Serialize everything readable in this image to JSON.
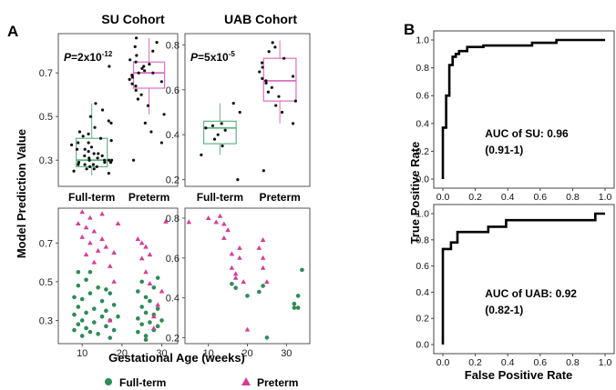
{
  "figure": {
    "panel_a_label": "A",
    "panel_b_label": "B",
    "su_title": "SU Cohort",
    "uab_title": "UAB Cohort",
    "y_axis_title_a": "Model Prediction Value",
    "x_axis_title_a": "Gestational Age (weeks)",
    "y_axis_title_b": "True Positive Rate",
    "x_axis_title_b": "False Positive Rate",
    "legend_fullterm": "Full-term",
    "legend_preterm": "Preterm"
  },
  "colors": {
    "fullterm": "#2e8b57",
    "preterm": "#d63c9a",
    "fullterm_box": "#5fb583",
    "preterm_box": "#df6dc0"
  },
  "chart_data": [
    {
      "id": "su-box",
      "type": "box",
      "title": "SU Cohort",
      "categories": [
        "Full-term",
        "Preterm"
      ],
      "ylim": [
        0.18,
        0.88
      ],
      "yticks": [
        0.3,
        0.5,
        0.7
      ],
      "ytick_labels": [
        "0.3",
        "0.5",
        "0.7"
      ],
      "annotation": {
        "prefix": "P",
        "text": "=2x10",
        "exp": "-12"
      },
      "boxes": [
        {
          "category": "Full-term",
          "q1": 0.27,
          "median": 0.3,
          "q3": 0.4,
          "whisker_low": 0.23,
          "whisker_high": 0.56
        },
        {
          "category": "Preterm",
          "q1": 0.63,
          "median": 0.7,
          "q3": 0.75,
          "whisker_low": 0.51,
          "whisker_high": 0.86
        }
      ],
      "points": [
        {
          "category": "Full-term",
          "values": [
            0.24,
            0.25,
            0.26,
            0.26,
            0.27,
            0.27,
            0.28,
            0.28,
            0.28,
            0.29,
            0.29,
            0.29,
            0.3,
            0.3,
            0.3,
            0.3,
            0.31,
            0.31,
            0.32,
            0.32,
            0.33,
            0.33,
            0.34,
            0.35,
            0.35,
            0.36,
            0.37,
            0.38,
            0.38,
            0.39,
            0.4,
            0.41,
            0.42,
            0.43,
            0.45,
            0.47,
            0.48,
            0.5,
            0.53,
            0.56,
            0.73
          ]
        },
        {
          "category": "Preterm",
          "values": [
            0.3,
            0.38,
            0.43,
            0.47,
            0.51,
            0.55,
            0.58,
            0.6,
            0.62,
            0.64,
            0.65,
            0.66,
            0.67,
            0.68,
            0.69,
            0.7,
            0.7,
            0.71,
            0.72,
            0.73,
            0.74,
            0.75,
            0.76,
            0.78,
            0.8,
            0.82,
            0.84,
            0.86
          ]
        }
      ]
    },
    {
      "id": "uab-box",
      "type": "box",
      "title": "UAB Cohort",
      "categories": [
        "Full-term",
        "Preterm"
      ],
      "ylim": [
        0.17,
        0.85
      ],
      "yticks": [
        0.2,
        0.4,
        0.6,
        0.8
      ],
      "ytick_labels": [
        "0.2",
        "0.4",
        "0.6",
        "0.8"
      ],
      "annotation": {
        "prefix": "P",
        "text": "=5x10",
        "exp": "-5"
      },
      "boxes": [
        {
          "category": "Full-term",
          "q1": 0.36,
          "median": 0.43,
          "q3": 0.46,
          "whisker_low": 0.31,
          "whisker_high": 0.54
        },
        {
          "category": "Preterm",
          "q1": 0.55,
          "median": 0.64,
          "q3": 0.74,
          "whisker_low": 0.45,
          "whisker_high": 0.82
        }
      ],
      "points": [
        {
          "category": "Full-term",
          "values": [
            0.2,
            0.31,
            0.35,
            0.38,
            0.4,
            0.42,
            0.43,
            0.44,
            0.45,
            0.5,
            0.54
          ]
        },
        {
          "category": "Preterm",
          "values": [
            0.24,
            0.45,
            0.5,
            0.53,
            0.55,
            0.57,
            0.59,
            0.61,
            0.63,
            0.64,
            0.65,
            0.66,
            0.68,
            0.7,
            0.72,
            0.74,
            0.77,
            0.79,
            0.81
          ]
        }
      ]
    },
    {
      "id": "su-scatter",
      "type": "scatter",
      "xlim": [
        4,
        34
      ],
      "ylim": [
        0.18,
        0.88
      ],
      "xticks": [
        10,
        20,
        30
      ],
      "xtick_labels": [
        "10",
        "20",
        "30"
      ],
      "yticks": [
        0.3,
        0.5,
        0.7
      ],
      "ytick_labels": [
        "0.3",
        "0.5",
        "0.7"
      ],
      "series": [
        {
          "group": "fullterm",
          "x": [
            8,
            8,
            9,
            9,
            10,
            10,
            10,
            11,
            11,
            12,
            12,
            13,
            13,
            14,
            15,
            15,
            16,
            16,
            17,
            17,
            18,
            18,
            19,
            8,
            9,
            11,
            14,
            16,
            24,
            24,
            25,
            25,
            26,
            26,
            27,
            27,
            28,
            28,
            29,
            29,
            30,
            24,
            25,
            26,
            28,
            29,
            9,
            12,
            17,
            26
          ],
          "y": [
            0.25,
            0.33,
            0.28,
            0.37,
            0.22,
            0.3,
            0.41,
            0.26,
            0.34,
            0.24,
            0.44,
            0.29,
            0.36,
            0.23,
            0.32,
            0.4,
            0.27,
            0.35,
            0.21,
            0.3,
            0.38,
            0.25,
            0.32,
            0.42,
            0.48,
            0.51,
            0.47,
            0.46,
            0.24,
            0.31,
            0.28,
            0.37,
            0.22,
            0.34,
            0.29,
            0.4,
            0.25,
            0.33,
            0.27,
            0.36,
            0.3,
            0.45,
            0.5,
            0.42,
            0.47,
            0.52,
            0.55,
            0.55,
            0.44,
            0.2
          ]
        },
        {
          "group": "preterm",
          "x": [
            9,
            10,
            10,
            11,
            11,
            12,
            12,
            13,
            13,
            14,
            15,
            15,
            16,
            17,
            17,
            18,
            18,
            19,
            24,
            25,
            25,
            26,
            26,
            27,
            27,
            28,
            28,
            29,
            30,
            31
          ],
          "y": [
            0.8,
            0.73,
            0.86,
            0.64,
            0.78,
            0.7,
            0.83,
            0.6,
            0.76,
            0.66,
            0.85,
            0.72,
            0.68,
            0.58,
            0.3,
            0.65,
            0.5,
            0.8,
            0.72,
            0.62,
            0.7,
            0.68,
            0.55,
            0.49,
            0.64,
            0.32,
            0.26,
            0.38,
            0.45,
            0.81
          ]
        }
      ]
    },
    {
      "id": "uab-scatter",
      "type": "scatter",
      "xlim": [
        4,
        36
      ],
      "ylim": [
        0.17,
        0.85
      ],
      "xticks": [
        10,
        20,
        30
      ],
      "xtick_labels": [
        "10",
        "20",
        "30"
      ],
      "yticks": [
        0.2,
        0.4,
        0.6,
        0.8
      ],
      "ytick_labels": [
        "0.2",
        "0.4",
        "0.6",
        "0.8"
      ],
      "series": [
        {
          "group": "fullterm",
          "x": [
            16,
            17,
            20,
            23,
            24,
            25,
            32,
            32,
            33,
            33,
            34
          ],
          "y": [
            0.47,
            0.45,
            0.41,
            0.43,
            0.46,
            0.2,
            0.35,
            0.37,
            0.41,
            0.35,
            0.54
          ]
        },
        {
          "group": "preterm",
          "x": [
            5,
            10,
            12,
            13,
            14,
            14,
            15,
            16,
            16,
            17,
            17,
            18,
            18,
            19,
            20,
            23,
            24,
            24,
            24,
            25
          ],
          "y": [
            0.78,
            0.8,
            0.78,
            0.81,
            0.7,
            0.77,
            0.74,
            0.62,
            0.55,
            0.5,
            0.52,
            0.65,
            0.6,
            0.48,
            0.24,
            0.65,
            0.69,
            0.6,
            0.55,
            0.48
          ]
        }
      ]
    },
    {
      "id": "su-roc",
      "type": "line",
      "xlim": [
        0,
        1
      ],
      "ylim": [
        0,
        1
      ],
      "ticks": [
        0.0,
        0.2,
        0.4,
        0.6,
        0.8,
        1.0
      ],
      "tick_labels": [
        "0.0",
        "0.2",
        "0.4",
        "0.6",
        "0.8",
        "1.0"
      ],
      "annotation_line1": "AUC of SU: 0.96",
      "annotation_line2": "(0.91-1)",
      "x": [
        0.0,
        0.0,
        0.02,
        0.02,
        0.04,
        0.04,
        0.06,
        0.06,
        0.08,
        0.08,
        0.1,
        0.1,
        0.15,
        0.15,
        0.25,
        0.25,
        0.55,
        0.55,
        0.7,
        0.7,
        1.0
      ],
      "y": [
        0.0,
        0.37,
        0.37,
        0.6,
        0.6,
        0.82,
        0.82,
        0.88,
        0.88,
        0.9,
        0.9,
        0.92,
        0.92,
        0.95,
        0.95,
        0.96,
        0.96,
        0.98,
        0.98,
        1.0,
        1.0
      ]
    },
    {
      "id": "uab-roc",
      "type": "line",
      "xlim": [
        0,
        1
      ],
      "ylim": [
        0,
        1
      ],
      "ticks": [
        0.0,
        0.2,
        0.4,
        0.6,
        0.8,
        1.0
      ],
      "tick_labels": [
        "0.0",
        "0.2",
        "0.4",
        "0.6",
        "0.8",
        "1.0"
      ],
      "annotation_line1": "AUC of UAB: 0.92",
      "annotation_line2": "(0.82-1)",
      "x": [
        0.0,
        0.0,
        0.05,
        0.05,
        0.09,
        0.09,
        0.28,
        0.28,
        0.39,
        0.39,
        0.94,
        0.94,
        1.0
      ],
      "y": [
        0.0,
        0.73,
        0.73,
        0.78,
        0.78,
        0.86,
        0.86,
        0.9,
        0.9,
        0.95,
        0.95,
        1.0,
        1.0
      ]
    }
  ]
}
